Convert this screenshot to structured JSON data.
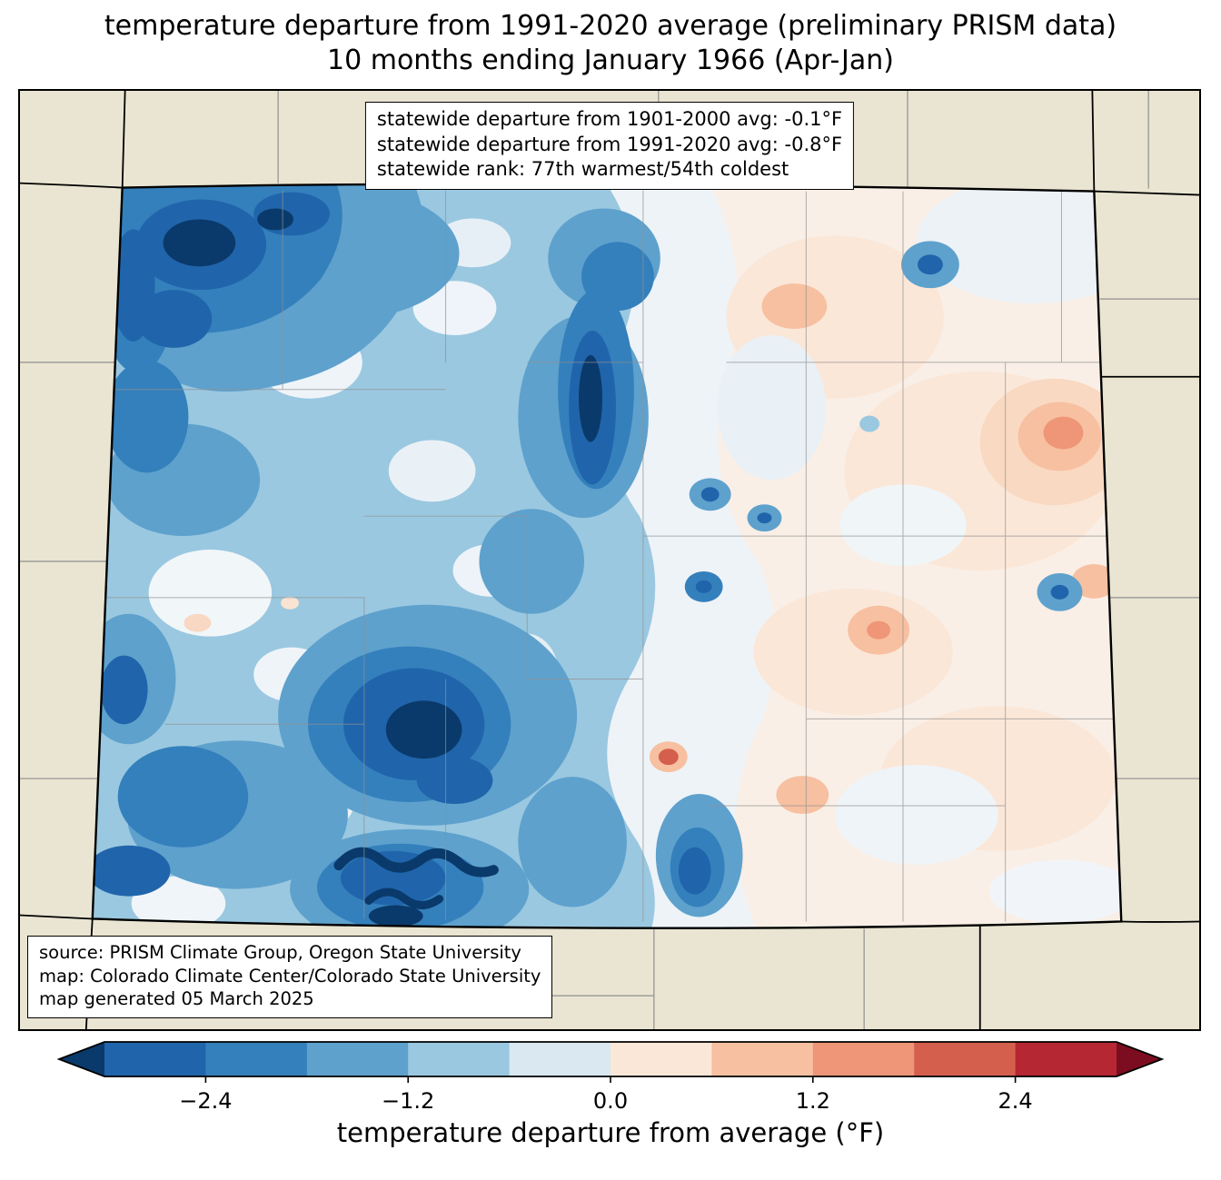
{
  "title": {
    "line1": "temperature departure from 1991-2020 average (preliminary PRISM data)",
    "line2": "10 months ending January 1966 (Apr-Jan)"
  },
  "stats_box": {
    "line1": "statewide departure from 1901-2000 avg: -0.1°F",
    "line2": "statewide departure from 1991-2020 avg: -0.8°F",
    "line3": "statewide rank: 77th warmest/54th coldest"
  },
  "source_box": {
    "line1": "source: PRISM Climate Group, Oregon State University",
    "line2": "map: Colorado Climate Center/Colorado State University",
    "line3": "map generated 05 March 2025"
  },
  "colorbar": {
    "label": "temperature departure from average (°F)",
    "range": [
      -3,
      3
    ],
    "ticks": [
      {
        "value": -2.4,
        "label": "−2.4"
      },
      {
        "value": -1.2,
        "label": "−1.2"
      },
      {
        "value": 0.0,
        "label": "0.0"
      },
      {
        "value": 1.2,
        "label": "1.2"
      },
      {
        "value": 2.4,
        "label": "2.4"
      }
    ],
    "segment_colors": [
      "#2065ab",
      "#3480bc",
      "#5ea1cd",
      "#9ac8e0",
      "#d9e8f1",
      "#fbe7d8",
      "#f7c0a1",
      "#ee9677",
      "#d55f4d",
      "#b52732"
    ],
    "arrow_left_color": "#0a3a6b",
    "arrow_right_color": "#7c0d20"
  },
  "map": {
    "background_color": "#e9e5d2",
    "state_border_color": "#000000",
    "county_line_color": "#909090"
  }
}
